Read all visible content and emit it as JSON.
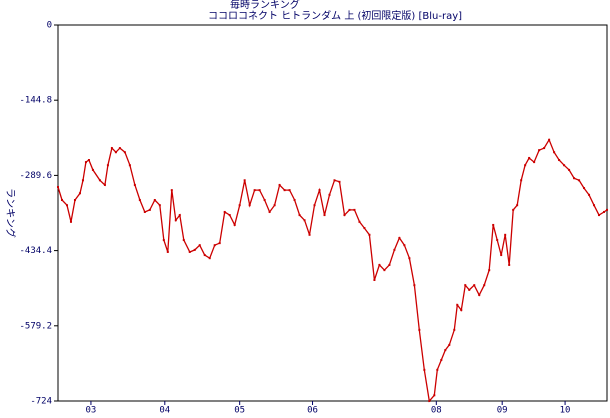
{
  "chart_data": {
    "type": "line",
    "title": "毎時ランキング",
    "subtitle": "ココロコネクト ヒトランダム 上 (初回限定版) [Blu-ray]",
    "ylabel": "ランキング",
    "x": [
      0,
      4,
      9,
      13,
      17,
      22,
      25,
      28,
      31,
      35,
      42,
      47,
      50,
      54,
      58,
      62,
      67,
      72,
      77,
      82,
      87,
      92,
      97,
      102,
      106,
      110,
      114,
      118,
      122,
      126,
      132,
      137,
      142,
      147,
      152,
      157,
      162,
      167,
      172,
      177,
      182,
      187,
      192,
      197,
      202,
      207,
      212,
      217,
      222,
      227,
      232,
      237,
      242,
      247,
      252,
      257,
      262,
      267,
      272,
      277,
      282,
      287,
      292,
      297,
      302,
      307,
      312,
      317,
      322,
      327,
      332,
      337,
      342,
      347,
      352,
      357,
      362,
      367,
      372,
      377,
      380,
      384,
      388,
      392,
      397,
      400,
      404,
      408,
      412,
      417,
      422,
      427,
      432,
      436,
      440,
      444,
      448,
      452,
      456,
      460,
      464,
      468,
      472,
      477,
      482,
      487,
      492,
      497,
      502,
      507,
      512,
      517,
      522,
      527,
      532,
      537,
      542,
      547,
      550
    ],
    "series": [
      {
        "name": "ランキング",
        "color": "#cc0000",
        "values": [
          -312,
          -337,
          -347,
          -379,
          -337,
          -324,
          -299,
          -264,
          -260,
          -279,
          -299,
          -308,
          -270,
          -237,
          -245,
          -237,
          -245,
          -270,
          -308,
          -337,
          -360,
          -356,
          -337,
          -347,
          -414,
          -437,
          -318,
          -376,
          -366,
          -414,
          -437,
          -433,
          -424,
          -443,
          -449,
          -424,
          -420,
          -360,
          -366,
          -385,
          -347,
          -299,
          -347,
          -318,
          -318,
          -337,
          -360,
          -347,
          -308,
          -318,
          -318,
          -337,
          -366,
          -376,
          -404,
          -347,
          -318,
          -366,
          -327,
          -299,
          -302,
          -366,
          -356,
          -356,
          -379,
          -391,
          -404,
          -491,
          -462,
          -472,
          -462,
          -433,
          -410,
          -424,
          -449,
          -501,
          -587,
          -664,
          -724,
          -713,
          -664,
          -645,
          -626,
          -616,
          -587,
          -539,
          -549,
          -501,
          -510,
          -501,
          -520,
          -501,
          -472,
          -385,
          -414,
          -443,
          -404,
          -462,
          -356,
          -347,
          -299,
          -270,
          -256,
          -264,
          -241,
          -237,
          -221,
          -245,
          -260,
          -270,
          -279,
          -295,
          -299,
          -314,
          -327,
          -347,
          -366,
          -360,
          -356
        ]
      }
    ],
    "xlim": [
      0,
      550
    ],
    "xticks": [
      {
        "value": 33,
        "label": "03"
      },
      {
        "value": 107,
        "label": "04"
      },
      {
        "value": 182,
        "label": "05"
      },
      {
        "value": 255,
        "label": "06"
      },
      {
        "value": 379,
        "label": "08"
      },
      {
        "value": 445,
        "label": "09"
      },
      {
        "value": 508,
        "label": "10"
      }
    ],
    "ylim": [
      -724,
      0
    ],
    "yticks": [
      0,
      -144.8,
      -289.6,
      -434.4,
      -579.2,
      -724
    ]
  }
}
